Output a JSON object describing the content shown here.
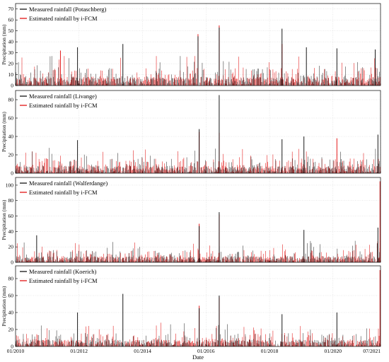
{
  "chart_data": [
    {
      "type": "line",
      "ylabel": "Precipitation (mm)",
      "ylim": [
        0,
        75
      ],
      "yticks": [
        0,
        10,
        20,
        30,
        40,
        50,
        60,
        70
      ],
      "grid": true,
      "legend_position": "top-left",
      "series": [
        {
          "name": "Measured rainfall (Potaschberg)",
          "color": "#000000",
          "peaks": [
            {
              "x": "2011-12-15",
              "y": 35
            },
            {
              "x": "2013-05-20",
              "y": 38
            },
            {
              "x": "2015-10-01",
              "y": 45
            },
            {
              "x": "2016-06-01",
              "y": 53
            },
            {
              "x": "2018-05-25",
              "y": 52
            },
            {
              "x": "2019-03-01",
              "y": 35
            },
            {
              "x": "2020-02-15",
              "y": 34
            },
            {
              "x": "2021-05-01",
              "y": 33
            }
          ]
        },
        {
          "name": "Estimated rainfall by i-FCM",
          "color": "#e00000",
          "peaks": [
            {
              "x": "2011-06-01",
              "y": 32
            },
            {
              "x": "2015-10-01",
              "y": 47
            },
            {
              "x": "2016-06-01",
              "y": 55
            },
            {
              "x": "2018-05-25",
              "y": 38
            }
          ]
        }
      ]
    },
    {
      "type": "line",
      "ylabel": "Precipitation (mm)",
      "ylim": [
        0,
        90
      ],
      "yticks": [
        0,
        20,
        40,
        60,
        80
      ],
      "grid": true,
      "legend_position": "top-left",
      "series": [
        {
          "name": "Measured rainfall (Livange)",
          "color": "#000000",
          "peaks": [
            {
              "x": "2011-12-15",
              "y": 36
            },
            {
              "x": "2015-10-15",
              "y": 48
            },
            {
              "x": "2016-06-01",
              "y": 85
            },
            {
              "x": "2018-05-25",
              "y": 37
            },
            {
              "x": "2019-02-01",
              "y": 40
            },
            {
              "x": "2021-06-01",
              "y": 42
            }
          ]
        },
        {
          "name": "Estimated rainfall by i-FCM",
          "color": "#e00000",
          "peaks": [
            {
              "x": "2015-10-15",
              "y": 45
            },
            {
              "x": "2016-06-01",
              "y": 44
            },
            {
              "x": "2020-02-15",
              "y": 38
            }
          ]
        }
      ]
    },
    {
      "type": "line",
      "ylabel": "Precipitation (mm)",
      "ylim": [
        0,
        110
      ],
      "yticks": [
        0,
        20,
        40,
        60,
        80,
        100
      ],
      "grid": true,
      "legend_position": "top-left",
      "series": [
        {
          "name": "Measured rainfall (Walferdange)",
          "color": "#000000",
          "peaks": [
            {
              "x": "2010-09-01",
              "y": 35
            },
            {
              "x": "2015-10-15",
              "y": 47
            },
            {
              "x": "2016-06-01",
              "y": 65
            },
            {
              "x": "2019-02-01",
              "y": 42
            },
            {
              "x": "2021-06-01",
              "y": 45
            }
          ]
        },
        {
          "name": "Estimated rainfall by i-FCM",
          "color": "#e00000",
          "peaks": [
            {
              "x": "2015-10-15",
              "y": 50
            },
            {
              "x": "2016-06-01",
              "y": 62
            },
            {
              "x": "2021-06-25",
              "y": 105
            }
          ]
        }
      ]
    },
    {
      "type": "line",
      "ylabel": "Precipitation (mm)",
      "xlabel": "Date",
      "ylim": [
        0,
        95
      ],
      "yticks": [
        0,
        20,
        40,
        60,
        80
      ],
      "grid": true,
      "legend_position": "top-left",
      "xticks": [
        "01/2010",
        "01/2012",
        "01/2014",
        "01/2016",
        "01/2018",
        "01/2020",
        "07/2021"
      ],
      "series": [
        {
          "name": "Measured rainfall  (Koerich)",
          "color": "#000000",
          "peaks": [
            {
              "x": "2011-12-15",
              "y": 40
            },
            {
              "x": "2013-05-20",
              "y": 62
            },
            {
              "x": "2015-10-15",
              "y": 45
            },
            {
              "x": "2016-06-01",
              "y": 60
            },
            {
              "x": "2018-05-25",
              "y": 38
            },
            {
              "x": "2020-02-15",
              "y": 40
            }
          ]
        },
        {
          "name": "Estimated rainfall by i-FCM",
          "color": "#e00000",
          "peaks": [
            {
              "x": "2015-10-15",
              "y": 48
            },
            {
              "x": "2016-06-01",
              "y": 58
            },
            {
              "x": "2021-06-25",
              "y": 90
            }
          ]
        }
      ]
    }
  ]
}
